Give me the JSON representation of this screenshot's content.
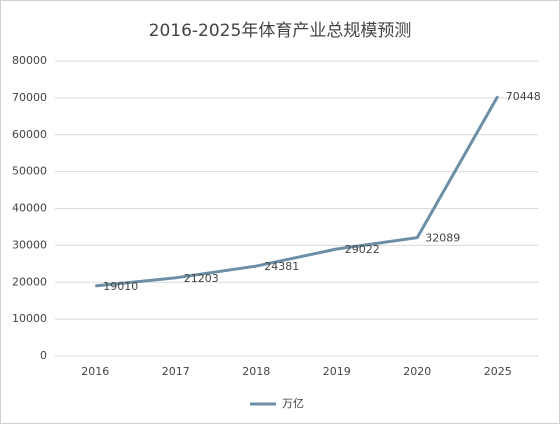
{
  "chart_data": {
    "type": "line",
    "title": "2016-2025年体育产业总规模预测",
    "categories": [
      "2016",
      "2017",
      "2018",
      "2019",
      "2020",
      "2025"
    ],
    "series": [
      {
        "name": "万亿",
        "color": "#6b8fa6",
        "values": [
          19010,
          21203,
          24381,
          29022,
          32089,
          70448
        ]
      }
    ],
    "ylim": [
      0,
      80000
    ],
    "yticks": [
      0,
      10000,
      20000,
      30000,
      40000,
      50000,
      60000,
      70000,
      80000
    ],
    "grid": true,
    "legend": "bottom"
  }
}
